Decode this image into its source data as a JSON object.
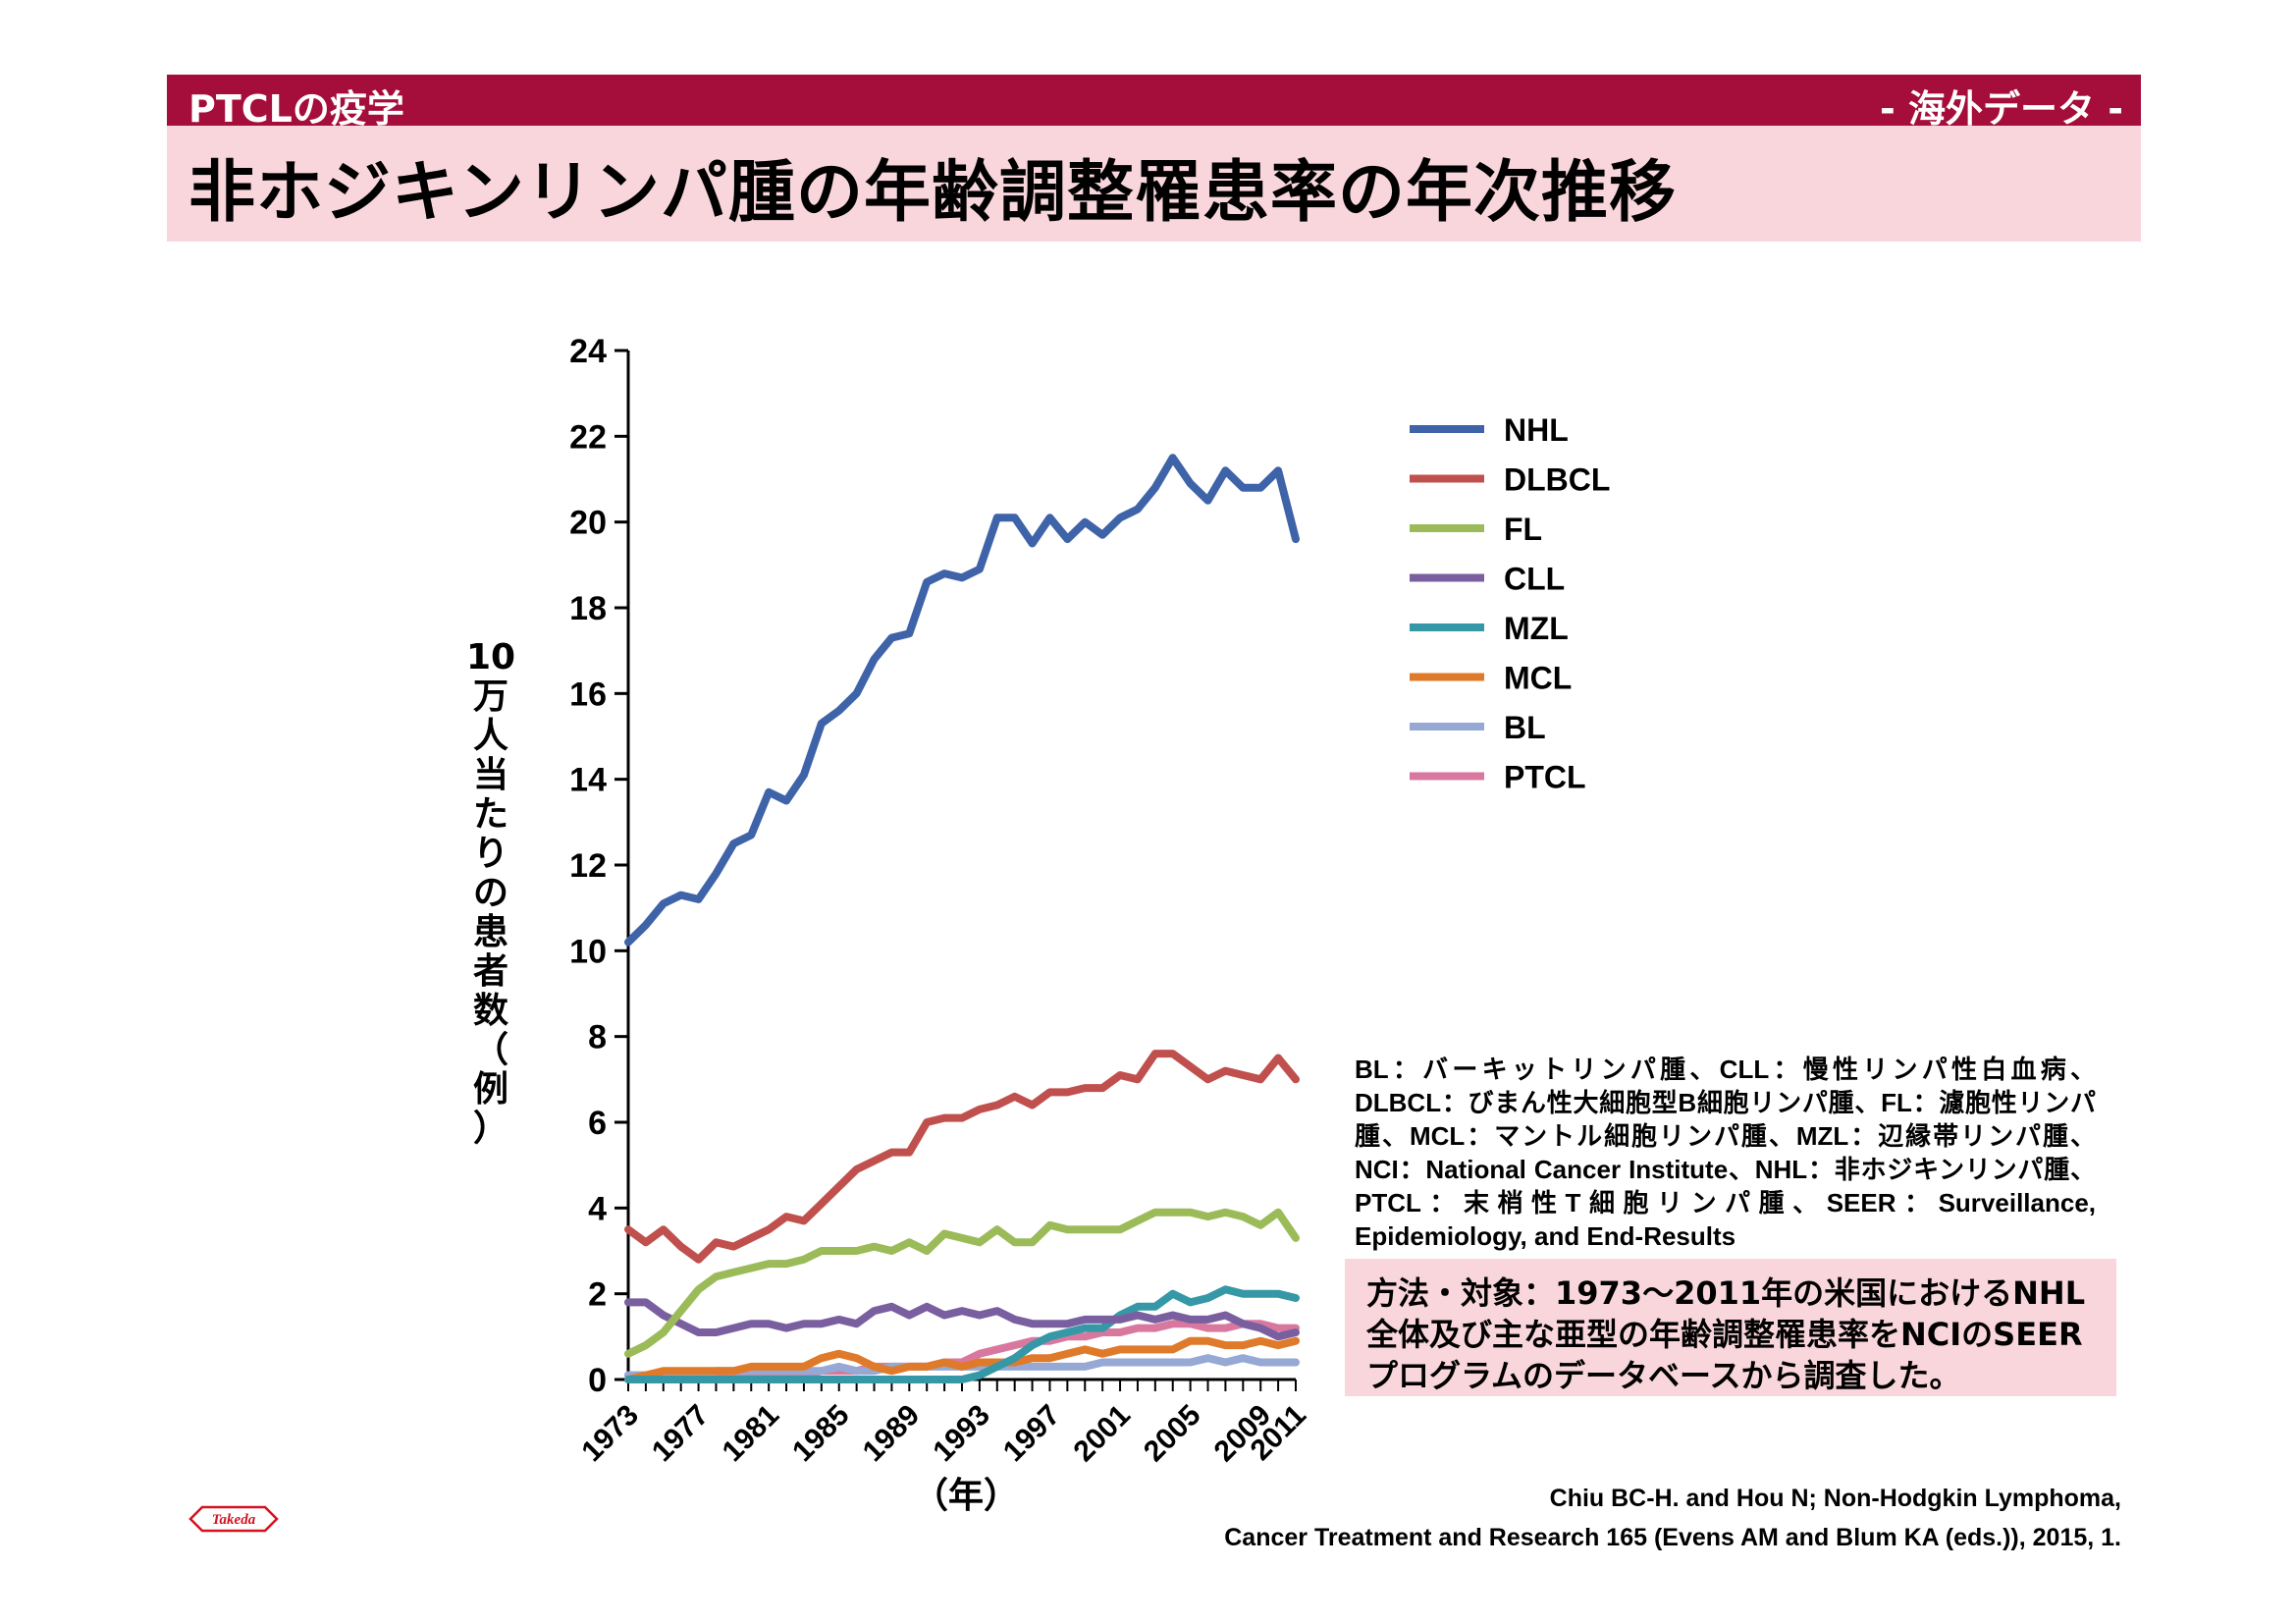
{
  "header": {
    "section": "PTCLの疫学",
    "tag": "- 海外データ -",
    "title": "非ホジキンリンパ腫の年齢調整罹患率の年次推移"
  },
  "chart_data": {
    "type": "line",
    "title": "",
    "xlabel": "（年）",
    "ylabel": "10万人当たりの患者数（例）",
    "ylim": [
      0,
      24
    ],
    "yticks": [
      0,
      2,
      4,
      6,
      8,
      10,
      12,
      14,
      16,
      18,
      20,
      22,
      24
    ],
    "xlim": [
      1973,
      2011
    ],
    "xticks": [
      1973,
      1977,
      1981,
      1985,
      1989,
      1993,
      1997,
      2001,
      2005,
      2009,
      2011
    ],
    "legend_position": "top-right",
    "x": [
      1973,
      1974,
      1975,
      1976,
      1977,
      1978,
      1979,
      1980,
      1981,
      1982,
      1983,
      1984,
      1985,
      1986,
      1987,
      1988,
      1989,
      1990,
      1991,
      1992,
      1993,
      1994,
      1995,
      1996,
      1997,
      1998,
      1999,
      2000,
      2001,
      2002,
      2003,
      2004,
      2005,
      2006,
      2007,
      2008,
      2009,
      2010,
      2011
    ],
    "series": [
      {
        "name": "NHL",
        "color": "#3e63a8",
        "values": [
          10.2,
          10.6,
          11.1,
          11.3,
          11.2,
          11.8,
          12.5,
          12.7,
          13.7,
          13.5,
          14.1,
          15.3,
          15.6,
          16.0,
          16.8,
          17.3,
          17.4,
          18.6,
          18.8,
          18.7,
          18.9,
          20.1,
          20.1,
          19.5,
          20.1,
          19.6,
          20.0,
          19.7,
          20.1,
          20.3,
          20.8,
          21.5,
          20.9,
          20.5,
          21.2,
          20.8,
          20.8,
          21.2,
          19.6
        ]
      },
      {
        "name": "DLBCL",
        "color": "#c0504d",
        "values": [
          3.5,
          3.2,
          3.5,
          3.1,
          2.8,
          3.2,
          3.1,
          3.3,
          3.5,
          3.8,
          3.7,
          4.1,
          4.5,
          4.9,
          5.1,
          5.3,
          5.3,
          6.0,
          6.1,
          6.1,
          6.3,
          6.4,
          6.6,
          6.4,
          6.7,
          6.7,
          6.8,
          6.8,
          7.1,
          7.0,
          7.6,
          7.6,
          7.3,
          7.0,
          7.2,
          7.1,
          7.0,
          7.5,
          7.0
        ]
      },
      {
        "name": "FL",
        "color": "#9bbb59",
        "values": [
          0.6,
          0.8,
          1.1,
          1.6,
          2.1,
          2.4,
          2.5,
          2.6,
          2.7,
          2.7,
          2.8,
          3.0,
          3.0,
          3.0,
          3.1,
          3.0,
          3.2,
          3.0,
          3.4,
          3.3,
          3.2,
          3.5,
          3.2,
          3.2,
          3.6,
          3.5,
          3.5,
          3.5,
          3.5,
          3.7,
          3.9,
          3.9,
          3.9,
          3.8,
          3.9,
          3.8,
          3.6,
          3.9,
          3.3
        ]
      },
      {
        "name": "CLL",
        "color": "#7a5fa0",
        "values": [
          1.8,
          1.8,
          1.5,
          1.3,
          1.1,
          1.1,
          1.2,
          1.3,
          1.3,
          1.2,
          1.3,
          1.3,
          1.4,
          1.3,
          1.6,
          1.7,
          1.5,
          1.7,
          1.5,
          1.6,
          1.5,
          1.6,
          1.4,
          1.3,
          1.3,
          1.3,
          1.4,
          1.4,
          1.4,
          1.5,
          1.4,
          1.5,
          1.4,
          1.4,
          1.5,
          1.3,
          1.2,
          1.0,
          1.1
        ]
      },
      {
        "name": "MZL",
        "color": "#3698a6",
        "values": [
          0,
          0,
          0,
          0,
          0,
          0,
          0,
          0,
          0,
          0,
          0,
          0,
          0,
          0,
          0,
          0,
          0,
          0,
          0,
          0,
          0.1,
          0.3,
          0.5,
          0.8,
          1.0,
          1.1,
          1.2,
          1.2,
          1.5,
          1.7,
          1.7,
          2.0,
          1.8,
          1.9,
          2.1,
          2.0,
          2.0,
          2.0,
          1.9
        ]
      },
      {
        "name": "MCL",
        "color": "#e07a2b",
        "values": [
          0,
          0.1,
          0.2,
          0.2,
          0.2,
          0.2,
          0.2,
          0.3,
          0.3,
          0.3,
          0.3,
          0.5,
          0.6,
          0.5,
          0.3,
          0.2,
          0.3,
          0.3,
          0.4,
          0.3,
          0.4,
          0.4,
          0.4,
          0.5,
          0.5,
          0.6,
          0.7,
          0.6,
          0.7,
          0.7,
          0.7,
          0.7,
          0.9,
          0.9,
          0.8,
          0.8,
          0.9,
          0.8,
          0.9
        ]
      },
      {
        "name": "BL",
        "color": "#95a9d4",
        "values": [
          0.1,
          0.1,
          0.1,
          0.1,
          0.1,
          0.2,
          0.2,
          0.2,
          0.2,
          0.2,
          0.2,
          0.2,
          0.3,
          0.2,
          0.2,
          0.3,
          0.3,
          0.3,
          0.3,
          0.3,
          0.3,
          0.3,
          0.3,
          0.3,
          0.3,
          0.3,
          0.3,
          0.4,
          0.4,
          0.4,
          0.4,
          0.4,
          0.4,
          0.5,
          0.4,
          0.5,
          0.4,
          0.4,
          0.4
        ]
      },
      {
        "name": "PTCL",
        "color": "#d9789f",
        "values": [
          0.1,
          0.1,
          0.1,
          0.1,
          0.1,
          0.1,
          0.1,
          0.1,
          0.1,
          0.1,
          0.1,
          0.2,
          0.2,
          0.2,
          0.3,
          0.3,
          0.3,
          0.3,
          0.4,
          0.4,
          0.6,
          0.7,
          0.8,
          0.9,
          0.9,
          1.0,
          1.0,
          1.1,
          1.1,
          1.2,
          1.2,
          1.3,
          1.3,
          1.2,
          1.2,
          1.3,
          1.3,
          1.2,
          1.2
        ]
      }
    ]
  },
  "notes": {
    "abbreviations": "BL：バーキットリンパ腫、CLL：慢性リンパ性白血病、DLBCL：びまん性大細胞型B細胞リンパ腫、FL：濾胞性リンパ腫、MCL：マントル細胞リンパ腫、MZL：辺縁帯リンパ腫、NCI：National Cancer Institute、NHL：非ホジキンリンパ腫、PTCL：末梢性T細胞リンパ腫、SEER：Surveillance, Epidemiology, and End-Results",
    "method": "方法・対象：1973～2011年の米国におけるNHL全体及び主な亜型の年齢調整罹患率をNCIのSEERプログラムのデータベースから調査した。",
    "citation_line1": "Chiu BC-H. and Hou N; Non-Hodgkin Lymphoma,",
    "citation_line2": "Cancer Treatment and Research 165 (Evens AM and Blum KA (eds.)), 2015, 1."
  },
  "logo": {
    "text": "Takeda",
    "color": "#d4121e"
  }
}
